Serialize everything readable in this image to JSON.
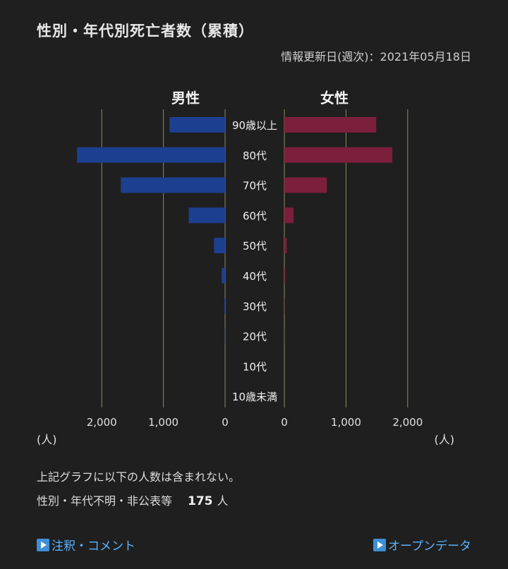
{
  "header": {
    "title": "性別・年代別死亡者数（累積）",
    "updated": "情報更新日(週次)：2021年05月18日"
  },
  "chart_data": {
    "type": "bar",
    "orientation": "horizontal-butterfly",
    "categories": [
      "90歳以上",
      "80代",
      "70代",
      "60代",
      "50代",
      "40代",
      "30代",
      "20代",
      "10代",
      "10歳未満"
    ],
    "series": [
      {
        "name": "男性",
        "color": "#1d3f8f",
        "values": [
          900,
          2400,
          1690,
          590,
          180,
          55,
          12,
          3,
          0,
          0
        ]
      },
      {
        "name": "女性",
        "color": "#7b1f3c",
        "values": [
          1490,
          1750,
          690,
          150,
          40,
          15,
          4,
          1,
          0,
          0
        ]
      }
    ],
    "xlim": [
      0,
      2500
    ],
    "ticks": [
      2000,
      1000,
      0
    ],
    "tick_labels": {
      "left": [
        "2,000",
        "1,000",
        "0"
      ],
      "right": [
        "0",
        "1,000",
        "2,000"
      ]
    },
    "unit_label": "(人)",
    "grid": true,
    "grid_color": "#8a8a62"
  },
  "notes": {
    "line1": "上記グラフに以下の人数は含まれない。",
    "label": "性別・年代不明・非公表等",
    "count": "175",
    "unit": "人"
  },
  "links": {
    "notes": "注釈・コメント",
    "opendata": "オープンデータ"
  }
}
